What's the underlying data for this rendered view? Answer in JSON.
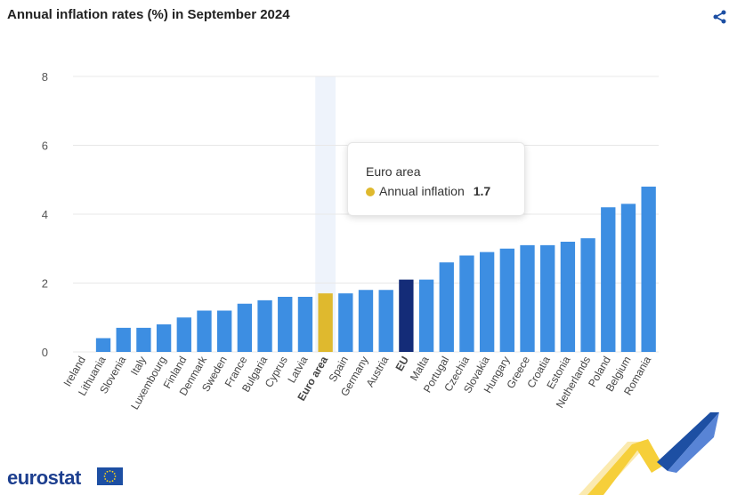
{
  "header": {
    "title": "Annual inflation rates (%) in September 2024"
  },
  "icons": {
    "share": "share-icon",
    "flag": "eu-flag-icon"
  },
  "colors": {
    "bar": "#3d8ee2",
    "euro_area": "#dfb92e",
    "eu": "#142c78",
    "highlight_band": "#eef3fb",
    "grid": "#e8e8e8"
  },
  "tooltip": {
    "category": "Euro area",
    "series": "Annual inflation",
    "value": "1.7"
  },
  "footer": {
    "logo_text": "eurostat"
  },
  "chart_data": {
    "type": "bar",
    "title": "Annual inflation rates (%) in September 2024",
    "xlabel": "",
    "ylabel": "",
    "ylim": [
      0,
      8
    ],
    "yticks": [
      0,
      2,
      4,
      6,
      8
    ],
    "grid": true,
    "categories": [
      "Ireland",
      "Lithuania",
      "Slovenia",
      "Italy",
      "Luxembourg",
      "Finland",
      "Denmark",
      "Sweden",
      "France",
      "Bulgaria",
      "Cyprus",
      "Latvia",
      "Euro area",
      "Spain",
      "Germany",
      "Austria",
      "EU",
      "Malta",
      "Portugal",
      "Czechia",
      "Slovakia",
      "Hungary",
      "Greece",
      "Croatia",
      "Estonia",
      "Netherlands",
      "Poland",
      "Belgium",
      "Romania"
    ],
    "series": [
      {
        "name": "Annual inflation",
        "values": [
          0.0,
          0.4,
          0.7,
          0.7,
          0.8,
          1.0,
          1.2,
          1.2,
          1.4,
          1.5,
          1.6,
          1.6,
          1.7,
          1.7,
          1.8,
          1.8,
          2.1,
          2.1,
          2.6,
          2.8,
          2.9,
          3.0,
          3.1,
          3.1,
          3.2,
          3.3,
          4.2,
          4.3,
          4.8
        ]
      }
    ],
    "highlighted": [
      "Euro area",
      "EU"
    ]
  }
}
